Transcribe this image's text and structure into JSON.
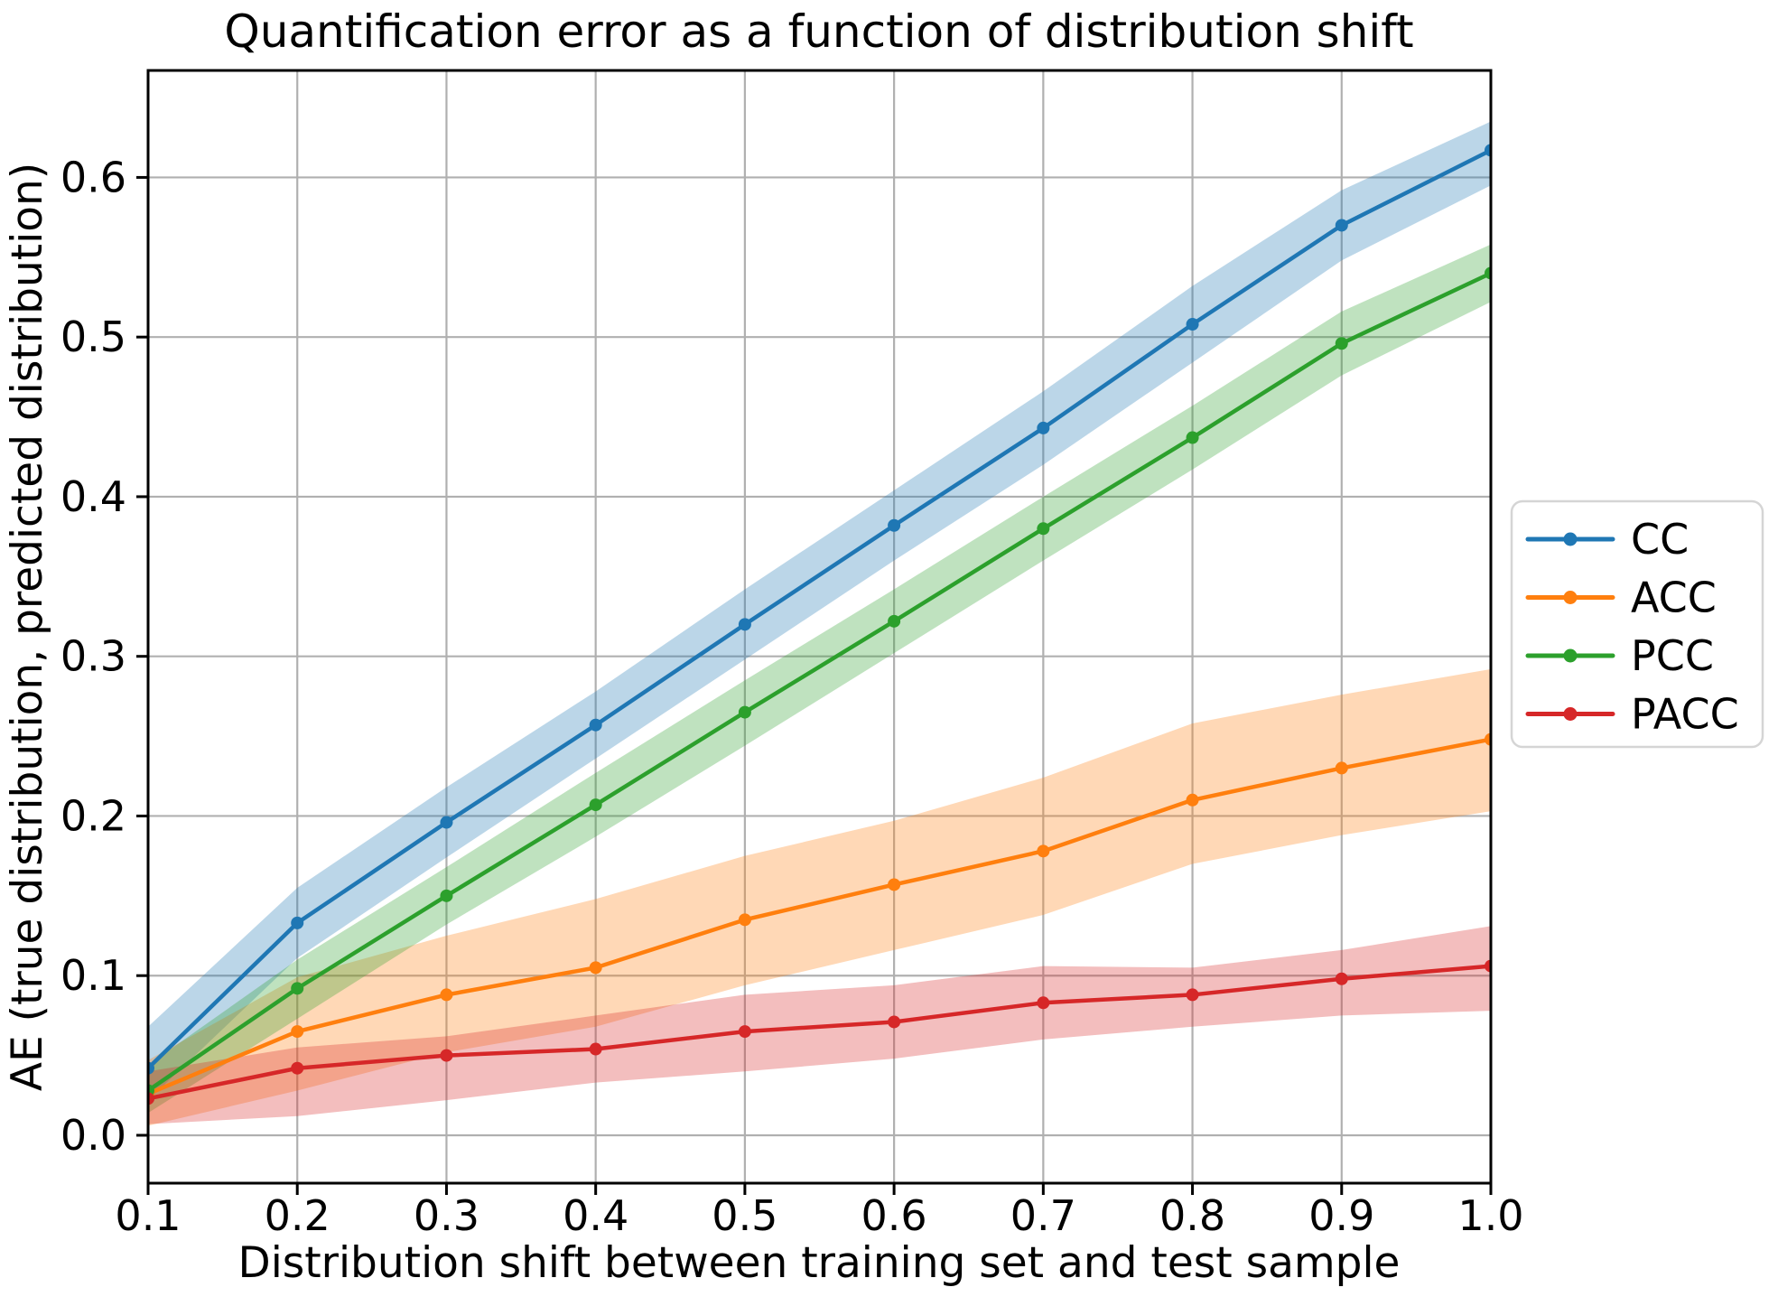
{
  "chart_data": {
    "type": "line",
    "title": "Quantification error as a function of distribution shift",
    "xlabel": "Distribution shift between training set and test sample",
    "ylabel": "AE (true distribution, predicted distribution)",
    "x": [
      0.1,
      0.2,
      0.3,
      0.4,
      0.5,
      0.6,
      0.7,
      0.8,
      0.9,
      1.0
    ],
    "xlim": [
      0.1,
      1.0
    ],
    "ylim": [
      -0.03,
      0.667
    ],
    "xtick_labels": [
      "0.1",
      "0.2",
      "0.3",
      "0.4",
      "0.5",
      "0.6",
      "0.7",
      "0.8",
      "0.9",
      "1.0"
    ],
    "ytick_values": [
      0.0,
      0.1,
      0.2,
      0.3,
      0.4,
      0.5,
      0.6
    ],
    "ytick_labels": [
      "0.0",
      "0.1",
      "0.2",
      "0.3",
      "0.4",
      "0.5",
      "0.6"
    ],
    "grid": true,
    "grid_color": "#b0b0b0",
    "legend_position": "outside-right",
    "band_alpha": 0.3,
    "series": [
      {
        "name": "CC",
        "color": "#1f77b4",
        "values": [
          0.042,
          0.133,
          0.196,
          0.257,
          0.32,
          0.382,
          0.443,
          0.508,
          0.57,
          0.617
        ],
        "band_upper": [
          0.068,
          0.155,
          0.218,
          0.278,
          0.342,
          0.404,
          0.466,
          0.532,
          0.592,
          0.635
        ],
        "band_lower": [
          0.022,
          0.111,
          0.174,
          0.236,
          0.298,
          0.36,
          0.42,
          0.484,
          0.548,
          0.595
        ]
      },
      {
        "name": "ACC",
        "color": "#ff7f0e",
        "values": [
          0.026,
          0.065,
          0.088,
          0.105,
          0.135,
          0.157,
          0.178,
          0.21,
          0.23,
          0.248
        ],
        "band_upper": [
          0.047,
          0.099,
          0.125,
          0.148,
          0.175,
          0.197,
          0.224,
          0.258,
          0.276,
          0.292
        ],
        "band_lower": [
          0.006,
          0.028,
          0.052,
          0.068,
          0.094,
          0.116,
          0.138,
          0.17,
          0.188,
          0.203
        ]
      },
      {
        "name": "PCC",
        "color": "#2ca02c",
        "values": [
          0.028,
          0.092,
          0.15,
          0.207,
          0.265,
          0.322,
          0.38,
          0.437,
          0.496,
          0.54
        ],
        "band_upper": [
          0.044,
          0.11,
          0.168,
          0.227,
          0.285,
          0.342,
          0.4,
          0.457,
          0.516,
          0.558
        ],
        "band_lower": [
          0.014,
          0.073,
          0.132,
          0.187,
          0.244,
          0.302,
          0.36,
          0.417,
          0.476,
          0.522
        ]
      },
      {
        "name": "PACC",
        "color": "#d62728",
        "values": [
          0.023,
          0.042,
          0.05,
          0.054,
          0.065,
          0.071,
          0.083,
          0.088,
          0.098,
          0.106
        ],
        "band_upper": [
          0.04,
          0.055,
          0.062,
          0.075,
          0.088,
          0.094,
          0.106,
          0.105,
          0.116,
          0.131
        ],
        "band_lower": [
          0.007,
          0.012,
          0.022,
          0.033,
          0.04,
          0.048,
          0.06,
          0.068,
          0.075,
          0.078
        ]
      }
    ]
  }
}
